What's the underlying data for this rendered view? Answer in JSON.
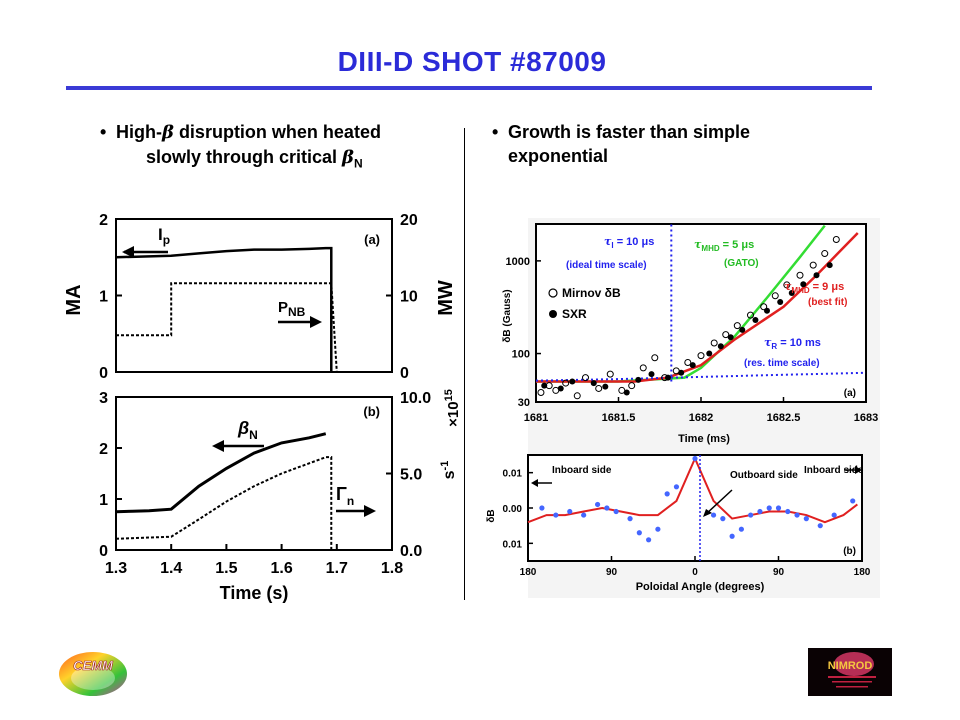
{
  "slide": {
    "title": "DIII-D SHOT #87009",
    "bullet_left": {
      "line1_pre": "High-",
      "line1_sym": "β",
      "line1_post": " disruption when heated",
      "line2_pre": "slowly through critical ",
      "line2_sym": "β",
      "line2_sub": "N"
    },
    "bullet_right": {
      "line1": "Growth is faster than simple",
      "line2": "exponential"
    },
    "logo_left_text": "CEMM",
    "logo_right_text": "NIMROD"
  },
  "colors": {
    "title": "#2b2bd8",
    "rule": "#3a3ad6",
    "green": "#33dd33",
    "red": "#e02020",
    "blue": "#2222ee"
  },
  "chart_data": [
    {
      "id": "a",
      "type": "line",
      "panel_label": "(a)",
      "ylabel_left": "MA",
      "ylabel_right": "MW",
      "yticks_left": [
        "0",
        "1",
        "2"
      ],
      "yticks_right": [
        "0",
        "10",
        "20"
      ],
      "x_range": [
        1.3,
        1.8
      ],
      "y_left_range": [
        0,
        2
      ],
      "series": [
        {
          "name": "Ip",
          "name_sub": "p",
          "style": "solid",
          "x": [
            1.3,
            1.4,
            1.45,
            1.5,
            1.55,
            1.6,
            1.65,
            1.68,
            1.69,
            1.69
          ],
          "y": [
            1.5,
            1.52,
            1.55,
            1.58,
            1.6,
            1.6,
            1.61,
            1.62,
            1.62,
            0.0
          ]
        },
        {
          "name": "PNB",
          "name_sub": "NB",
          "style": "dashed",
          "x": [
            1.3,
            1.4,
            1.4,
            1.69,
            1.7
          ],
          "y": [
            0.48,
            0.48,
            1.16,
            1.16,
            0.0
          ]
        }
      ]
    },
    {
      "id": "b",
      "type": "line",
      "panel_label": "(b)",
      "ylabel_right_exp": "15",
      "ylabel_right_mult": "×10",
      "ylabel_right_unit": "s",
      "ylabel_right_unit_exp": "-1",
      "xlabel": "Time (s)",
      "xticks": [
        "1.3",
        "1.4",
        "1.5",
        "1.6",
        "1.7",
        "1.8"
      ],
      "yticks_left": [
        "0",
        "1",
        "2",
        "3"
      ],
      "yticks_right": [
        "0.0",
        "5.0",
        "10.0"
      ],
      "x_range": [
        1.3,
        1.8
      ],
      "y_left_range": [
        0,
        3
      ],
      "series": [
        {
          "name": "βN",
          "name_sub": "N",
          "style": "solid",
          "x": [
            1.3,
            1.33,
            1.36,
            1.4,
            1.45,
            1.5,
            1.55,
            1.6,
            1.65,
            1.68
          ],
          "y": [
            0.75,
            0.76,
            0.77,
            0.8,
            1.25,
            1.6,
            1.9,
            2.1,
            2.2,
            2.28
          ]
        },
        {
          "name": "Γn",
          "name_sub": "n",
          "style": "dashed",
          "x": [
            1.3,
            1.35,
            1.4,
            1.45,
            1.5,
            1.55,
            1.6,
            1.65,
            1.68,
            1.69,
            1.69
          ],
          "y": [
            0.22,
            0.24,
            0.26,
            0.6,
            0.95,
            1.25,
            1.5,
            1.7,
            1.82,
            1.82,
            0.0
          ]
        }
      ]
    },
    {
      "id": "c",
      "type": "line",
      "panel_label": "(a)",
      "y_scale": "log",
      "xlabel": "Time (ms)",
      "ylabel": "δB (Gauss)",
      "xticks": [
        "1681",
        "1681.5",
        "1682",
        "1682.5",
        "1683"
      ],
      "yticks": [
        "30",
        "100",
        "1000"
      ],
      "x_range": [
        1681,
        1683
      ],
      "y_range": [
        30,
        2500
      ],
      "annotations": {
        "tau_i_label": "τ",
        "tau_i_sub": "I",
        "tau_i_val": " = 10 μs",
        "ideal_text": "(ideal time scale)",
        "tau_mhd_g_label": "τ",
        "tau_mhd_g_sub": "MHD",
        "tau_mhd_g_val": " = 5 μs",
        "gato_text": "(GATO)",
        "tau_mhd_r_label": "τ",
        "tau_mhd_r_sub": "MHD",
        "tau_mhd_r_val": " = 9 μs",
        "bestfit_text": "(best fit)",
        "tau_r_label": "τ",
        "tau_r_sub": "R",
        "tau_r_val": " = 10 ms",
        "res_text": "(res. time scale)",
        "legend_mirnov": "Mirnov δB",
        "legend_sxr": "SXR"
      },
      "series": [
        {
          "name": "green",
          "color": "#33dd33",
          "x": [
            1681.0,
            1681.5,
            1681.9,
            1682.0,
            1682.2,
            1682.4,
            1682.6,
            1682.75
          ],
          "y": [
            50,
            50,
            55,
            70,
            150,
            400,
            1100,
            2400
          ]
        },
        {
          "name": "red",
          "color": "#e02020",
          "x": [
            1681.0,
            1681.6,
            1681.8,
            1682.0,
            1682.2,
            1682.5,
            1682.7,
            1682.95
          ],
          "y": [
            50,
            50,
            55,
            75,
            140,
            320,
            700,
            2000
          ]
        },
        {
          "name": "blue-dotted-res",
          "color": "#2222ee",
          "x": [
            1681.0,
            1681.5,
            1682.0,
            1682.5,
            1683.0
          ],
          "y": [
            51,
            53,
            56,
            59,
            62
          ]
        },
        {
          "name": "blue-dotted-ideal",
          "color": "#2222ee",
          "x": [
            1681.82,
            1681.82
          ],
          "y": [
            50,
            2500
          ]
        }
      ],
      "points_open": {
        "x": [
          1681.03,
          1681.08,
          1681.12,
          1681.18,
          1681.25,
          1681.3,
          1681.38,
          1681.45,
          1681.52,
          1681.58,
          1681.65,
          1681.72,
          1681.78,
          1681.85,
          1681.92,
          1682.0,
          1682.08,
          1682.15,
          1682.22,
          1682.3,
          1682.38,
          1682.45,
          1682.52,
          1682.6,
          1682.68,
          1682.75,
          1682.82
        ],
        "y": [
          38,
          45,
          40,
          48,
          35,
          55,
          42,
          60,
          40,
          45,
          70,
          90,
          55,
          65,
          80,
          95,
          130,
          160,
          200,
          260,
          320,
          420,
          550,
          700,
          900,
          1200,
          1700
        ]
      },
      "points_filled": {
        "x": [
          1681.05,
          1681.15,
          1681.22,
          1681.35,
          1681.42,
          1681.55,
          1681.62,
          1681.7,
          1681.8,
          1681.88,
          1681.95,
          1682.05,
          1682.12,
          1682.18,
          1682.25,
          1682.33,
          1682.4,
          1682.48,
          1682.55,
          1682.62,
          1682.7,
          1682.78
        ],
        "y": [
          45,
          42,
          50,
          48,
          44,
          38,
          52,
          60,
          55,
          62,
          75,
          100,
          120,
          150,
          180,
          230,
          290,
          360,
          450,
          560,
          700,
          900
        ]
      }
    },
    {
      "id": "d",
      "type": "line",
      "panel_label": "(b)",
      "xlabel": "Poloidal Angle (degrees)",
      "ylabel": "δB",
      "xticks": [
        "180",
        "90",
        "0",
        "90",
        "180"
      ],
      "yticks": [
        "0.01",
        "0.00",
        "0.01"
      ],
      "x_range": [
        -180,
        180
      ],
      "y_range": [
        -0.015,
        0.015
      ],
      "annotations": {
        "inboard_left": "Inboard side",
        "outboard": "Outboard side",
        "inboard_right": "Inboard side"
      },
      "series": [
        {
          "name": "red",
          "color": "#e02020",
          "x": [
            -180,
            -160,
            -140,
            -120,
            -100,
            -80,
            -60,
            -40,
            -20,
            0,
            20,
            40,
            60,
            80,
            100,
            120,
            140,
            160,
            175
          ],
          "y": [
            -0.004,
            -0.002,
            -0.002,
            -0.001,
            0.0,
            -0.001,
            -0.002,
            -0.002,
            0.002,
            0.014,
            0.002,
            -0.003,
            -0.002,
            -0.001,
            -0.001,
            -0.002,
            -0.004,
            -0.002,
            0.001
          ]
        }
      ],
      "points": {
        "x": [
          -165,
          -150,
          -135,
          -120,
          -105,
          -95,
          -85,
          -70,
          -60,
          -50,
          -40,
          -30,
          -20,
          0,
          20,
          30,
          40,
          50,
          60,
          70,
          80,
          90,
          100,
          110,
          120,
          135,
          150,
          170
        ],
        "y": [
          0.0,
          -0.002,
          -0.001,
          -0.002,
          0.001,
          0.0,
          -0.001,
          -0.003,
          -0.007,
          -0.009,
          -0.006,
          0.004,
          0.006,
          0.014,
          -0.002,
          -0.003,
          -0.008,
          -0.006,
          -0.002,
          -0.001,
          0.0,
          0.0,
          -0.001,
          -0.002,
          -0.003,
          -0.005,
          -0.002,
          0.002
        ]
      }
    }
  ]
}
